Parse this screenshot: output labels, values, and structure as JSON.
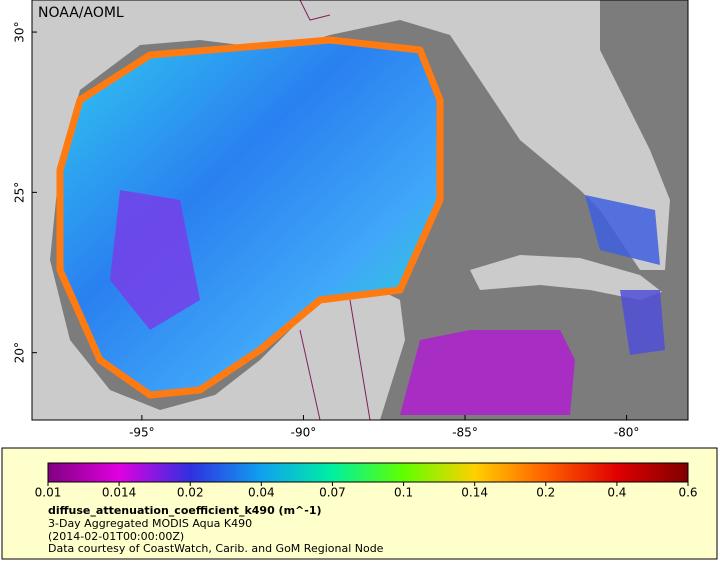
{
  "header": {
    "credit": "NOAA/AOML"
  },
  "map": {
    "xlim": [
      -98.4,
      -78.1
    ],
    "ylim": [
      17.9,
      31.0
    ],
    "xticks": [
      {
        "value": -95,
        "label": "-95°"
      },
      {
        "value": -90,
        "label": "-90°"
      },
      {
        "value": -85,
        "label": "-85°"
      },
      {
        "value": -80,
        "label": "-80°"
      }
    ],
    "yticks": [
      {
        "value": 20,
        "label": "20°"
      },
      {
        "value": 25,
        "label": "25°"
      },
      {
        "value": 30,
        "label": "30°"
      }
    ]
  },
  "colorbar": {
    "ticks": [
      0.01,
      0.014,
      0.02,
      0.04,
      0.07,
      0.1,
      0.14,
      0.2,
      0.4,
      0.6
    ],
    "colors": [
      "#800080",
      "#e000e0",
      "#3030e0",
      "#10a0f0",
      "#00f0a0",
      "#60ff00",
      "#ffd000",
      "#ff6000",
      "#e00000",
      "#800000"
    ]
  },
  "caption": {
    "variable": "diffuse_attenuation_coefficient_k490 (m^-1)",
    "product": "3-Day Aggregated MODIS Aqua K490",
    "time": "(2014-02-01T00:00:00Z)",
    "credit": "Data courtesy of CoastWatch, Carib. and GoM Regional Node"
  }
}
